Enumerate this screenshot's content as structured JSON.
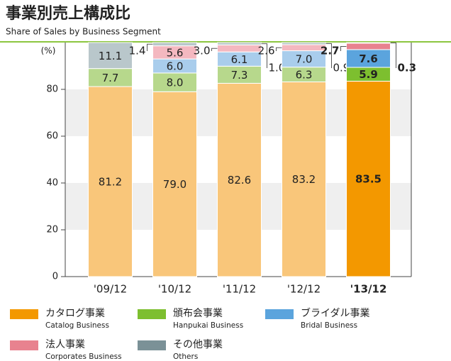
{
  "chart_data": {
    "type": "stacked_bar",
    "title": "事業別売上構成比",
    "subtitle": "Share of Sales by Business Segment",
    "y_unit": "(%)",
    "categories": [
      "'09/12",
      "'10/12",
      "'11/12",
      "'12/12",
      "'13/12"
    ],
    "highlight_index": 4,
    "ylim": [
      0,
      100
    ],
    "yticks": [
      0,
      20,
      40,
      60,
      80
    ],
    "series": [
      {
        "name": "カタログ事業",
        "name_en": "Catalog Business",
        "color": "#f39800",
        "pale_color": "#f9c67a",
        "values": [
          81.2,
          79.0,
          82.6,
          83.2,
          83.5
        ],
        "value_labels": [
          "81.2",
          "79.0",
          "82.6",
          "83.2",
          "83.5"
        ]
      },
      {
        "name": "頒布会事業",
        "name_en": "Hanpukai Business",
        "color": "#7dbf2f",
        "pale_color": "#b7d88c",
        "values": [
          7.7,
          8.0,
          7.3,
          6.3,
          5.9
        ],
        "value_labels": [
          "7.7",
          "8.0",
          "7.3",
          "6.3",
          "5.9"
        ]
      },
      {
        "name": "ブライダル事業",
        "name_en": "Bridal Business",
        "color": "#5ba4dd",
        "pale_color": "#a9cdec",
        "values": [
          null,
          6.0,
          6.1,
          7.0,
          7.6
        ],
        "value_labels": [
          null,
          "6.0",
          "6.1",
          "7.0",
          "7.6"
        ]
      },
      {
        "name": "法人事業",
        "name_en": "Corporates Business",
        "color": "#e8828f",
        "pale_color": "#f4b8c0",
        "values": [
          null,
          5.6,
          3.0,
          2.6,
          2.7
        ],
        "value_labels": [
          null,
          "5.6",
          "3.0",
          "2.6",
          "2.7"
        ]
      },
      {
        "name": "その他事業",
        "name_en": "Others",
        "color": "#7b9197",
        "pale_color": "#b9c7cb",
        "values": [
          11.1,
          1.4,
          1.0,
          0.9,
          0.3
        ],
        "value_labels": [
          "11.1",
          "1.4",
          "1.0",
          "0.9",
          "0.3"
        ]
      }
    ]
  }
}
